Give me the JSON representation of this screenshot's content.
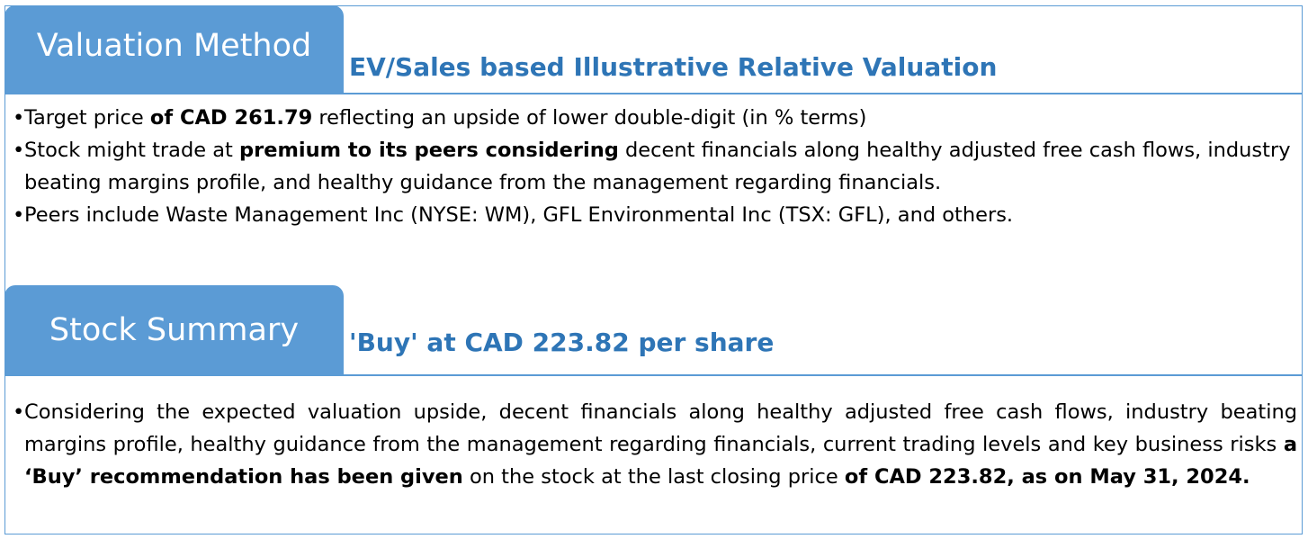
{
  "valuation": {
    "tab_label": "Valuation Method",
    "heading": "EV/Sales based Illustrative Relative Valuation",
    "bullet1": {
      "t1": "Target price ",
      "b1": "of CAD 261.79",
      "t2": " reflecting an upside of lower double-digit (in % terms)"
    },
    "bullet2": {
      "t1": "Stock might trade at ",
      "b1": "premium to its peers considering",
      "t2": " decent financials along healthy adjusted free cash flows, industry beating margins profile, and healthy guidance from the management regarding financials."
    },
    "bullet3": {
      "t1": "Peers include Waste Management Inc (NYSE: WM), GFL Environmental Inc (TSX: GFL), and others."
    }
  },
  "summary": {
    "tab_label": "Stock Summary",
    "heading": "'Buy' at CAD 223.82 per share",
    "bullet1": {
      "t1": "Considering the expected valuation upside, decent financials along healthy adjusted free cash flows, industry beating margins profile, healthy guidance from the management regarding financials, current trading levels and key business risks ",
      "b1": "a ‘Buy’ recommendation has been given",
      "t2": " on the stock at the last closing price ",
      "b2": "of CAD 223.82, as on May 31, 2024."
    }
  },
  "bullet_char": "•",
  "colors": {
    "accent": "#5b9bd5",
    "heading": "#2e75b6",
    "text": "#000000"
  }
}
